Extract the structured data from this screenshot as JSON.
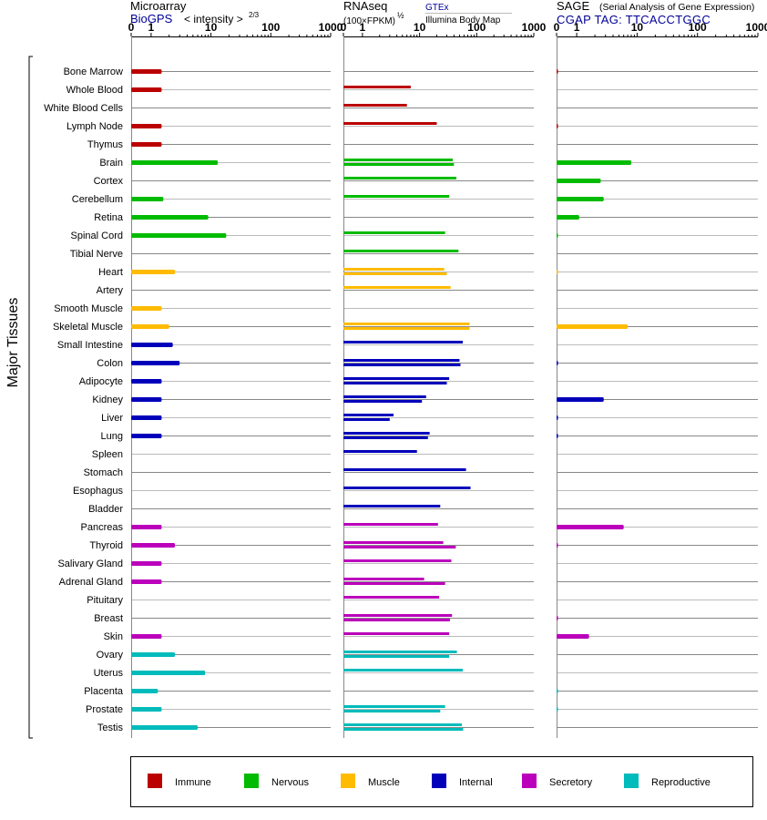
{
  "panels": {
    "microarray": {
      "title": "Microarray",
      "source": "BioGPS",
      "measure_prefix": "< intensity >",
      "measure_exponent": "2/3"
    },
    "rnaseq": {
      "title": "RNAseq",
      "measure_prefix": "(100×FPKM)",
      "measure_exponent": "½",
      "source_1": "GTEx",
      "source_2": "Illumina Body Map"
    },
    "sage": {
      "title": "SAGE",
      "subtitle": "(Serial Analysis of Gene Expression)",
      "tag": "CGAP TAG: TTCACCTGGC"
    }
  },
  "axis": {
    "tick_labels": [
      "0",
      "1",
      "10",
      "100",
      "1000"
    ],
    "tick_values": [
      0,
      1,
      10,
      100,
      1000
    ]
  },
  "tissue_group_label": "Major Tissues",
  "colors": {
    "Immune": "#bb0000",
    "Nervous": "#00bb00",
    "Muscle": "#ffbb00",
    "Internal": "#0000bb",
    "Secretory": "#bb00bb",
    "Reproductive": "#00bbbb"
  },
  "legend": [
    "Immune",
    "Nervous",
    "Muscle",
    "Internal",
    "Secretory",
    "Reproductive"
  ],
  "chart_data": {
    "type": "bar",
    "orientation": "horizontal",
    "x_scale": "log-like (0, 1, 10, 100, 1000)",
    "xlim": [
      0,
      1000
    ],
    "grid": true,
    "legend_position": "bottom",
    "tissues": [
      {
        "name": "Bone Marrow",
        "category": "Immune",
        "microarray": 1.5,
        "rnaseq": [],
        "sage": 0.02
      },
      {
        "name": "Whole Blood",
        "category": "Immune",
        "microarray": 1.5,
        "rnaseq": [
          7
        ],
        "sage": null
      },
      {
        "name": "White Blood Cells",
        "category": "Immune",
        "microarray": null,
        "rnaseq": [
          6
        ],
        "sage": null
      },
      {
        "name": "Lymph Node",
        "category": "Immune",
        "microarray": 1.5,
        "rnaseq": [
          20
        ],
        "sage": 0.02
      },
      {
        "name": "Thymus",
        "category": "Immune",
        "microarray": 1.5,
        "rnaseq": [],
        "sage": null
      },
      {
        "name": "Brain",
        "category": "Nervous",
        "microarray": 13,
        "rnaseq": [
          38,
          40
        ],
        "sage": 8
      },
      {
        "name": "Cortex",
        "category": "Nervous",
        "microarray": null,
        "rnaseq": [
          44
        ],
        "sage": 2.5
      },
      {
        "name": "Cerebellum",
        "category": "Nervous",
        "microarray": 1.6,
        "rnaseq": [
          33
        ],
        "sage": 2.8
      },
      {
        "name": "Retina",
        "category": "Nervous",
        "microarray": 9,
        "rnaseq": [],
        "sage": 1.1
      },
      {
        "name": "Spinal Cord",
        "category": "Nervous",
        "microarray": 18,
        "rnaseq": [
          28
        ],
        "sage": 0.03
      },
      {
        "name": "Tibial Nerve",
        "category": "Nervous",
        "microarray": null,
        "rnaseq": [
          48
        ],
        "sage": null
      },
      {
        "name": "Heart",
        "category": "Muscle",
        "microarray": 2.5,
        "rnaseq": [
          27,
          30
        ],
        "sage": 0.02
      },
      {
        "name": "Artery",
        "category": "Muscle",
        "microarray": null,
        "rnaseq": [
          35
        ],
        "sage": null
      },
      {
        "name": "Smooth Muscle",
        "category": "Muscle",
        "microarray": 1.5,
        "rnaseq": [],
        "sage": null
      },
      {
        "name": "Skeletal Muscle",
        "category": "Muscle",
        "microarray": 2,
        "rnaseq": [
          75,
          75
        ],
        "sage": 7
      },
      {
        "name": "Small Intestine",
        "category": "Internal",
        "microarray": 2.3,
        "rnaseq": [
          57
        ],
        "sage": null
      },
      {
        "name": "Colon",
        "category": "Internal",
        "microarray": 3,
        "rnaseq": [
          50,
          52
        ],
        "sage": 0.02
      },
      {
        "name": "Adipocyte",
        "category": "Internal",
        "microarray": 1.5,
        "rnaseq": [
          33,
          30
        ],
        "sage": null
      },
      {
        "name": "Kidney",
        "category": "Internal",
        "microarray": 1.5,
        "rnaseq": [
          13,
          11
        ],
        "sage": 2.8
      },
      {
        "name": "Liver",
        "category": "Internal",
        "microarray": 1.5,
        "rnaseq": [
          3.5,
          3
        ],
        "sage": 0.02
      },
      {
        "name": "Lung",
        "category": "Internal",
        "microarray": 1.5,
        "rnaseq": [
          15,
          14
        ],
        "sage": 0.02
      },
      {
        "name": "Spleen",
        "category": "Internal",
        "microarray": null,
        "rnaseq": [
          9
        ],
        "sage": null
      },
      {
        "name": "Stomach",
        "category": "Internal",
        "microarray": null,
        "rnaseq": [
          65
        ],
        "sage": null
      },
      {
        "name": "Esophagus",
        "category": "Internal",
        "microarray": null,
        "rnaseq": [
          78
        ],
        "sage": null
      },
      {
        "name": "Bladder",
        "category": "Internal",
        "microarray": null,
        "rnaseq": [
          23
        ],
        "sage": null
      },
      {
        "name": "Pancreas",
        "category": "Secretory",
        "microarray": 1.5,
        "rnaseq": [
          21
        ],
        "sage": 6
      },
      {
        "name": "Thyroid",
        "category": "Secretory",
        "microarray": 2.5,
        "rnaseq": [
          26,
          43
        ],
        "sage": 0.02
      },
      {
        "name": "Salivary Gland",
        "category": "Secretory",
        "microarray": 1.5,
        "rnaseq": [
          36
        ],
        "sage": null
      },
      {
        "name": "Adrenal Gland",
        "category": "Secretory",
        "microarray": 1.5,
        "rnaseq": [
          12,
          28
        ],
        "sage": null
      },
      {
        "name": "Pituitary",
        "category": "Secretory",
        "microarray": null,
        "rnaseq": [
          22
        ],
        "sage": null
      },
      {
        "name": "Breast",
        "category": "Secretory",
        "microarray": null,
        "rnaseq": [
          37,
          34
        ],
        "sage": 0.02
      },
      {
        "name": "Skin",
        "category": "Secretory",
        "microarray": 1.5,
        "rnaseq": [
          33
        ],
        "sage": 1.6
      },
      {
        "name": "Ovary",
        "category": "Reproductive",
        "microarray": 2.5,
        "rnaseq": [
          45,
          33
        ],
        "sage": null
      },
      {
        "name": "Uterus",
        "category": "Reproductive",
        "microarray": 8,
        "rnaseq": [
          57
        ],
        "sage": null
      },
      {
        "name": "Placenta",
        "category": "Reproductive",
        "microarray": 1.3,
        "rnaseq": [],
        "sage": 0.02
      },
      {
        "name": "Prostate",
        "category": "Reproductive",
        "microarray": 1.5,
        "rnaseq": [
          28,
          23
        ],
        "sage": 0.02
      },
      {
        "name": "Testis",
        "category": "Reproductive",
        "microarray": 6,
        "rnaseq": [
          55,
          58
        ],
        "sage": null
      }
    ]
  }
}
